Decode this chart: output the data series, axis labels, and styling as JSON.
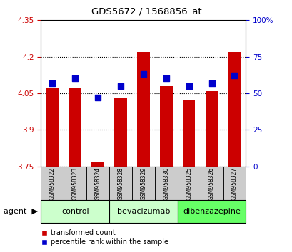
{
  "title": "GDS5672 / 1568856_at",
  "samples": [
    "GSM958322",
    "GSM958323",
    "GSM958324",
    "GSM958328",
    "GSM958329",
    "GSM958330",
    "GSM958325",
    "GSM958326",
    "GSM958327"
  ],
  "red_values": [
    4.07,
    4.07,
    3.77,
    4.03,
    4.22,
    4.08,
    4.02,
    4.06,
    4.22
  ],
  "blue_values_pct": [
    57,
    60,
    47,
    55,
    63,
    60,
    55,
    57,
    62
  ],
  "ylim": [
    3.75,
    4.35
  ],
  "y_ticks": [
    3.75,
    3.9,
    4.05,
    4.2,
    4.35
  ],
  "right_ylim": [
    0,
    100
  ],
  "right_yticks": [
    0,
    25,
    50,
    75,
    100
  ],
  "right_yticklabels": [
    "0",
    "25",
    "50",
    "75",
    "100%"
  ],
  "bar_color": "#cc0000",
  "dot_color": "#0000cc",
  "bar_base": 3.75,
  "bar_width": 0.55,
  "dot_size": 30,
  "legend_red_label": "transformed count",
  "legend_blue_label": "percentile rank within the sample",
  "bg_color": "#ffffff",
  "sample_box_color": "#cccccc",
  "group_colors": [
    "#ccffcc",
    "#ccffcc",
    "#66ff66"
  ],
  "group_labels": [
    "control",
    "bevacizumab",
    "dibenzazepine"
  ],
  "group_ranges": [
    [
      0,
      3
    ],
    [
      3,
      6
    ],
    [
      6,
      9
    ]
  ]
}
